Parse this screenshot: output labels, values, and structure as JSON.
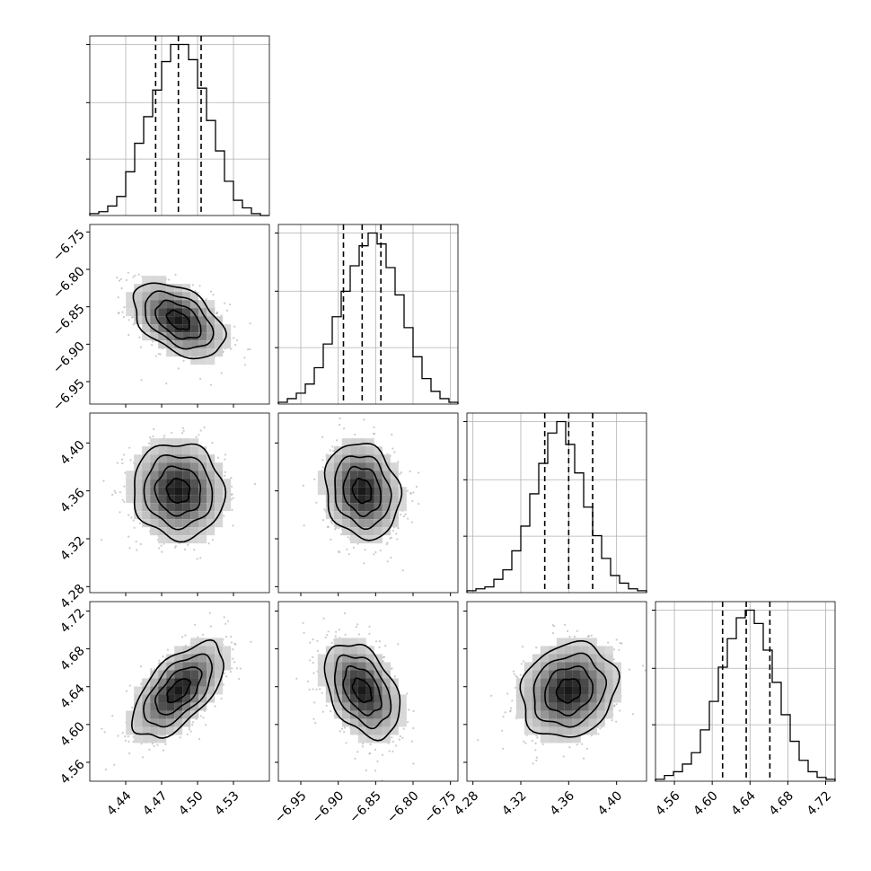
{
  "chart_data": {
    "type": "corner",
    "parameters": [
      {
        "range": [
          4.41,
          4.56
        ],
        "ticks": [
          4.44,
          4.47,
          4.5,
          4.53
        ],
        "tick_labels": [
          "4.44",
          "4.47",
          "4.50",
          "4.53"
        ],
        "quantiles": [
          4.465,
          4.484,
          4.503
        ],
        "hist": {
          "bin_start": 4.41,
          "bin_width": 0.0075,
          "counts": [
            1,
            2,
            5,
            10,
            23,
            38,
            52,
            66,
            81,
            90,
            90,
            82,
            67,
            50,
            34,
            18,
            8,
            4,
            1,
            0
          ]
        }
      },
      {
        "range": [
          -6.98,
          -6.74
        ],
        "ticks": [
          -6.95,
          -6.9,
          -6.85,
          -6.8,
          -6.75
        ],
        "tick_labels": [
          "−6.95",
          "−6.90",
          "−6.85",
          "−6.80",
          "−6.75"
        ],
        "quantiles": [
          -6.893,
          -6.868,
          -6.843
        ],
        "hist": {
          "bin_start": -6.98,
          "bin_width": 0.012,
          "counts": [
            1,
            3,
            6,
            11,
            20,
            33,
            48,
            62,
            76,
            87,
            94,
            88,
            75,
            60,
            42,
            26,
            14,
            7,
            3,
            1
          ]
        }
      },
      {
        "range": [
          4.275,
          4.425
        ],
        "ticks": [
          4.28,
          4.32,
          4.36,
          4.4
        ],
        "tick_labels": [
          "4.28",
          "4.32",
          "4.36",
          "4.40"
        ],
        "quantiles": [
          4.34,
          4.36,
          4.38
        ],
        "hist": {
          "bin_start": 4.275,
          "bin_width": 0.0075,
          "counts": [
            1,
            2,
            3,
            7,
            12,
            22,
            35,
            52,
            68,
            84,
            90,
            78,
            63,
            45,
            30,
            18,
            9,
            5,
            2,
            1
          ]
        }
      },
      {
        "range": [
          4.54,
          4.73
        ],
        "ticks": [
          4.56,
          4.6,
          4.64,
          4.68,
          4.72
        ],
        "tick_labels": [
          "4.56",
          "4.60",
          "4.64",
          "4.68",
          "4.72"
        ],
        "quantiles": [
          4.611,
          4.636,
          4.661
        ],
        "hist": {
          "bin_start": 4.54,
          "bin_width": 0.0095,
          "counts": [
            1,
            3,
            5,
            9,
            15,
            27,
            42,
            60,
            75,
            86,
            90,
            83,
            69,
            52,
            35,
            21,
            11,
            5,
            2,
            1
          ]
        }
      }
    ],
    "pairs": [
      {
        "i": 0,
        "j": 1,
        "corr": -0.45
      },
      {
        "i": 0,
        "j": 2,
        "corr": -0.05
      },
      {
        "i": 1,
        "j": 2,
        "corr": -0.15
      },
      {
        "i": 0,
        "j": 3,
        "corr": 0.6
      },
      {
        "i": 1,
        "j": 3,
        "corr": -0.4
      },
      {
        "i": 2,
        "j": 3,
        "corr": 0.15
      }
    ],
    "grid": true
  }
}
